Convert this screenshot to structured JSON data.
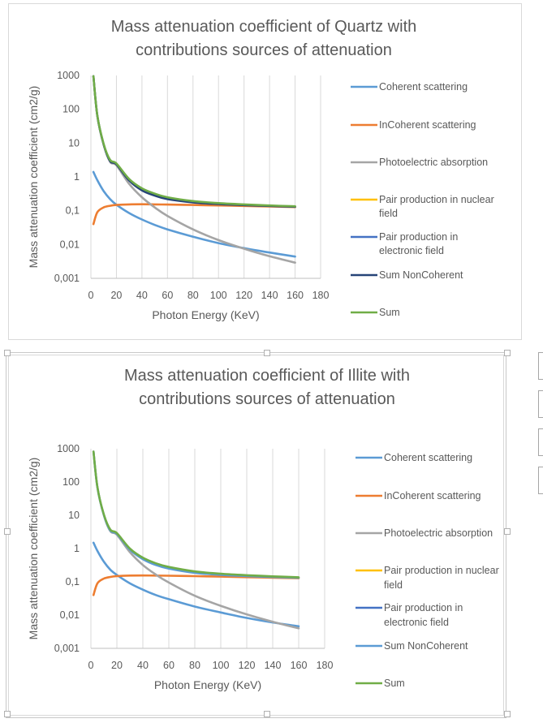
{
  "chart_data": [
    {
      "type": "line",
      "title_lines": [
        "Mass attenuation coefficient of Quartz with",
        "contributions sources of attenuation"
      ],
      "xlabel": "Photon Energy (KeV)",
      "ylabel": "Mass attenuation coefficient (cm2/g)",
      "xlim": [
        0,
        180
      ],
      "ylim": [
        0.001,
        1000
      ],
      "yscale": "log",
      "x_ticks": [
        "0",
        "20",
        "40",
        "60",
        "80",
        "100",
        "120",
        "140",
        "160",
        "180"
      ],
      "y_ticks": [
        "1000",
        "100",
        "10",
        "1",
        "0,1",
        "0,01",
        "0,001"
      ],
      "grid": "vertical",
      "legend_position": "right",
      "x": [
        2,
        5,
        10,
        15,
        20,
        30,
        40,
        50,
        60,
        80,
        100,
        120,
        140,
        160
      ],
      "series": [
        {
          "name": "Coherent scattering",
          "color": "#5b9bd5",
          "values": [
            1.4,
            0.8,
            0.38,
            0.22,
            0.15,
            0.085,
            0.055,
            0.038,
            0.028,
            0.017,
            0.011,
            0.0078,
            0.0058,
            0.0044
          ]
        },
        {
          "name": "InCoherent scattering",
          "color": "#ed7d31",
          "values": [
            0.04,
            0.09,
            0.125,
            0.14,
            0.148,
            0.154,
            0.155,
            0.154,
            0.152,
            0.148,
            0.143,
            0.138,
            0.133,
            0.128
          ]
        },
        {
          "name": "Photoelectric absorption",
          "color": "#a5a5a5",
          "values": [
            950,
            65,
            9,
            2.8,
            2.2,
            0.62,
            0.25,
            0.125,
            0.07,
            0.028,
            0.0135,
            0.0075,
            0.0045,
            0.0029
          ]
        },
        {
          "name": "Pair production in nuclear field",
          "color": "#ffc000",
          "values": []
        },
        {
          "name": "Pair production in electronic field",
          "color": "#4472c4",
          "values": []
        },
        {
          "name": "Sum NonCoherent",
          "color": "#264478",
          "values": [
            950,
            65,
            9.1,
            2.95,
            2.35,
            0.78,
            0.4,
            0.28,
            0.22,
            0.176,
            0.157,
            0.146,
            0.138,
            0.131
          ]
        },
        {
          "name": "Sum",
          "color": "#70ad47",
          "values": [
            950,
            66,
            9.5,
            3.2,
            2.5,
            0.86,
            0.46,
            0.32,
            0.25,
            0.193,
            0.168,
            0.154,
            0.143,
            0.135
          ]
        }
      ]
    },
    {
      "type": "line",
      "title_lines": [
        "Mass attenuation coefficient of Illite with",
        "contributions sources of attenuation"
      ],
      "xlabel": "Photon Energy (KeV)",
      "ylabel": "Mass attenuation coefficient (cm2/g)",
      "xlim": [
        0,
        180
      ],
      "ylim": [
        0.001,
        1000
      ],
      "yscale": "log",
      "x_ticks": [
        "0",
        "20",
        "40",
        "60",
        "80",
        "100",
        "120",
        "140",
        "160",
        "180"
      ],
      "y_ticks": [
        "1000",
        "100",
        "10",
        "1",
        "0,1",
        "0,01",
        "0,001"
      ],
      "grid": "vertical",
      "legend_position": "right",
      "x": [
        2,
        5,
        10,
        15,
        20,
        30,
        40,
        50,
        60,
        80,
        100,
        120,
        140,
        160
      ],
      "series": [
        {
          "name": "Coherent scattering",
          "color": "#5b9bd5",
          "values": [
            1.5,
            0.85,
            0.4,
            0.23,
            0.16,
            0.09,
            0.058,
            0.04,
            0.03,
            0.018,
            0.012,
            0.0082,
            0.006,
            0.0046
          ]
        },
        {
          "name": "InCoherent scattering",
          "color": "#ed7d31",
          "values": [
            0.04,
            0.09,
            0.125,
            0.14,
            0.148,
            0.154,
            0.155,
            0.154,
            0.152,
            0.148,
            0.143,
            0.138,
            0.133,
            0.128
          ]
        },
        {
          "name": "Photoelectric absorption",
          "color": "#a5a5a5",
          "values": [
            820,
            70,
            10,
            3.3,
            2.6,
            0.78,
            0.32,
            0.165,
            0.095,
            0.038,
            0.019,
            0.0105,
            0.0063,
            0.004
          ]
        },
        {
          "name": "Pair production in nuclear field",
          "color": "#ffc000",
          "values": []
        },
        {
          "name": "Pair production in electronic field",
          "color": "#4472c4",
          "values": []
        },
        {
          "name": "Sum NonCoherent",
          "color": "#5b9bd5",
          "values": [
            820,
            70,
            10.1,
            3.45,
            2.75,
            0.93,
            0.48,
            0.32,
            0.25,
            0.186,
            0.162,
            0.149,
            0.139,
            0.132
          ]
        },
        {
          "name": "Sum",
          "color": "#70ad47",
          "values": [
            820,
            71,
            10.5,
            3.7,
            2.9,
            1.0,
            0.53,
            0.36,
            0.28,
            0.205,
            0.175,
            0.158,
            0.146,
            0.137
          ]
        }
      ]
    }
  ]
}
